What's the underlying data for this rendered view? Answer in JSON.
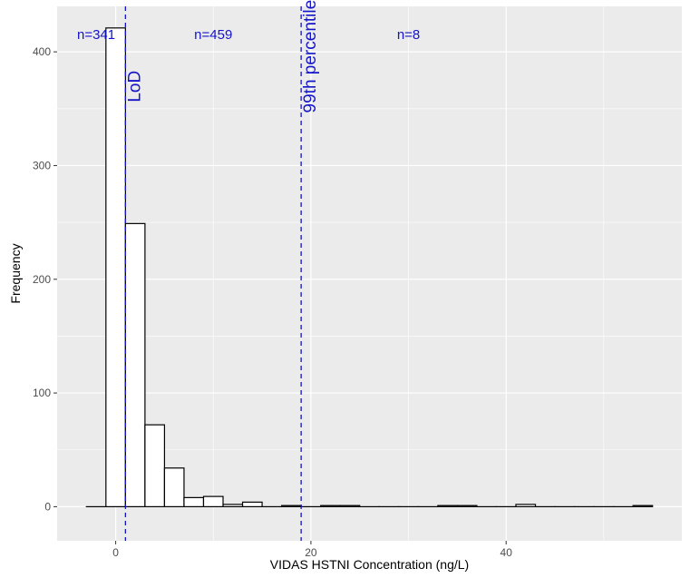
{
  "chart_data": {
    "type": "bar",
    "subtype": "histogram",
    "title": "",
    "xlabel": "VIDAS HSTNI Concentration (ng/L)",
    "ylabel": "Frequency",
    "xlim": [
      -6,
      58
    ],
    "ylim": [
      -30,
      440
    ],
    "x_ticks": [
      0,
      20,
      40
    ],
    "y_ticks": [
      0,
      100,
      200,
      300,
      400
    ],
    "bin_width": 2,
    "bins": [
      {
        "start": -3,
        "end": -1,
        "count": 0
      },
      {
        "start": -1,
        "end": 1,
        "count": 421
      },
      {
        "start": 1,
        "end": 3,
        "count": 249
      },
      {
        "start": 3,
        "end": 5,
        "count": 72
      },
      {
        "start": 5,
        "end": 7,
        "count": 34
      },
      {
        "start": 7,
        "end": 9,
        "count": 8
      },
      {
        "start": 9,
        "end": 11,
        "count": 9
      },
      {
        "start": 11,
        "end": 13,
        "count": 2
      },
      {
        "start": 13,
        "end": 15,
        "count": 4
      },
      {
        "start": 15,
        "end": 17,
        "count": 0
      },
      {
        "start": 17,
        "end": 19,
        "count": 1
      },
      {
        "start": 19,
        "end": 21,
        "count": 0
      },
      {
        "start": 21,
        "end": 23,
        "count": 1
      },
      {
        "start": 23,
        "end": 25,
        "count": 1
      },
      {
        "start": 25,
        "end": 27,
        "count": 0
      },
      {
        "start": 27,
        "end": 29,
        "count": 0
      },
      {
        "start": 29,
        "end": 31,
        "count": 0
      },
      {
        "start": 31,
        "end": 33,
        "count": 0
      },
      {
        "start": 33,
        "end": 35,
        "count": 1
      },
      {
        "start": 35,
        "end": 37,
        "count": 1
      },
      {
        "start": 37,
        "end": 39,
        "count": 0
      },
      {
        "start": 39,
        "end": 41,
        "count": 0
      },
      {
        "start": 41,
        "end": 43,
        "count": 2
      },
      {
        "start": 43,
        "end": 45,
        "count": 0
      },
      {
        "start": 45,
        "end": 47,
        "count": 0
      },
      {
        "start": 47,
        "end": 49,
        "count": 0
      },
      {
        "start": 49,
        "end": 51,
        "count": 0
      },
      {
        "start": 51,
        "end": 53,
        "count": 0
      },
      {
        "start": 53,
        "end": 55,
        "count": 1
      }
    ],
    "reference_lines": [
      {
        "x": 1,
        "label": "LoD"
      },
      {
        "x": 19,
        "label": "99th percentile"
      }
    ],
    "annotations": [
      {
        "text": "n=341",
        "x": -2
      },
      {
        "text": "n=459",
        "x": 10
      },
      {
        "text": "n=8",
        "x": 30
      }
    ],
    "colors": {
      "panel": "#ebebeb",
      "grid": "#ffffff",
      "bar_fill": "#ffffff",
      "bar_stroke": "#000000",
      "reference": "#1414c8"
    }
  }
}
